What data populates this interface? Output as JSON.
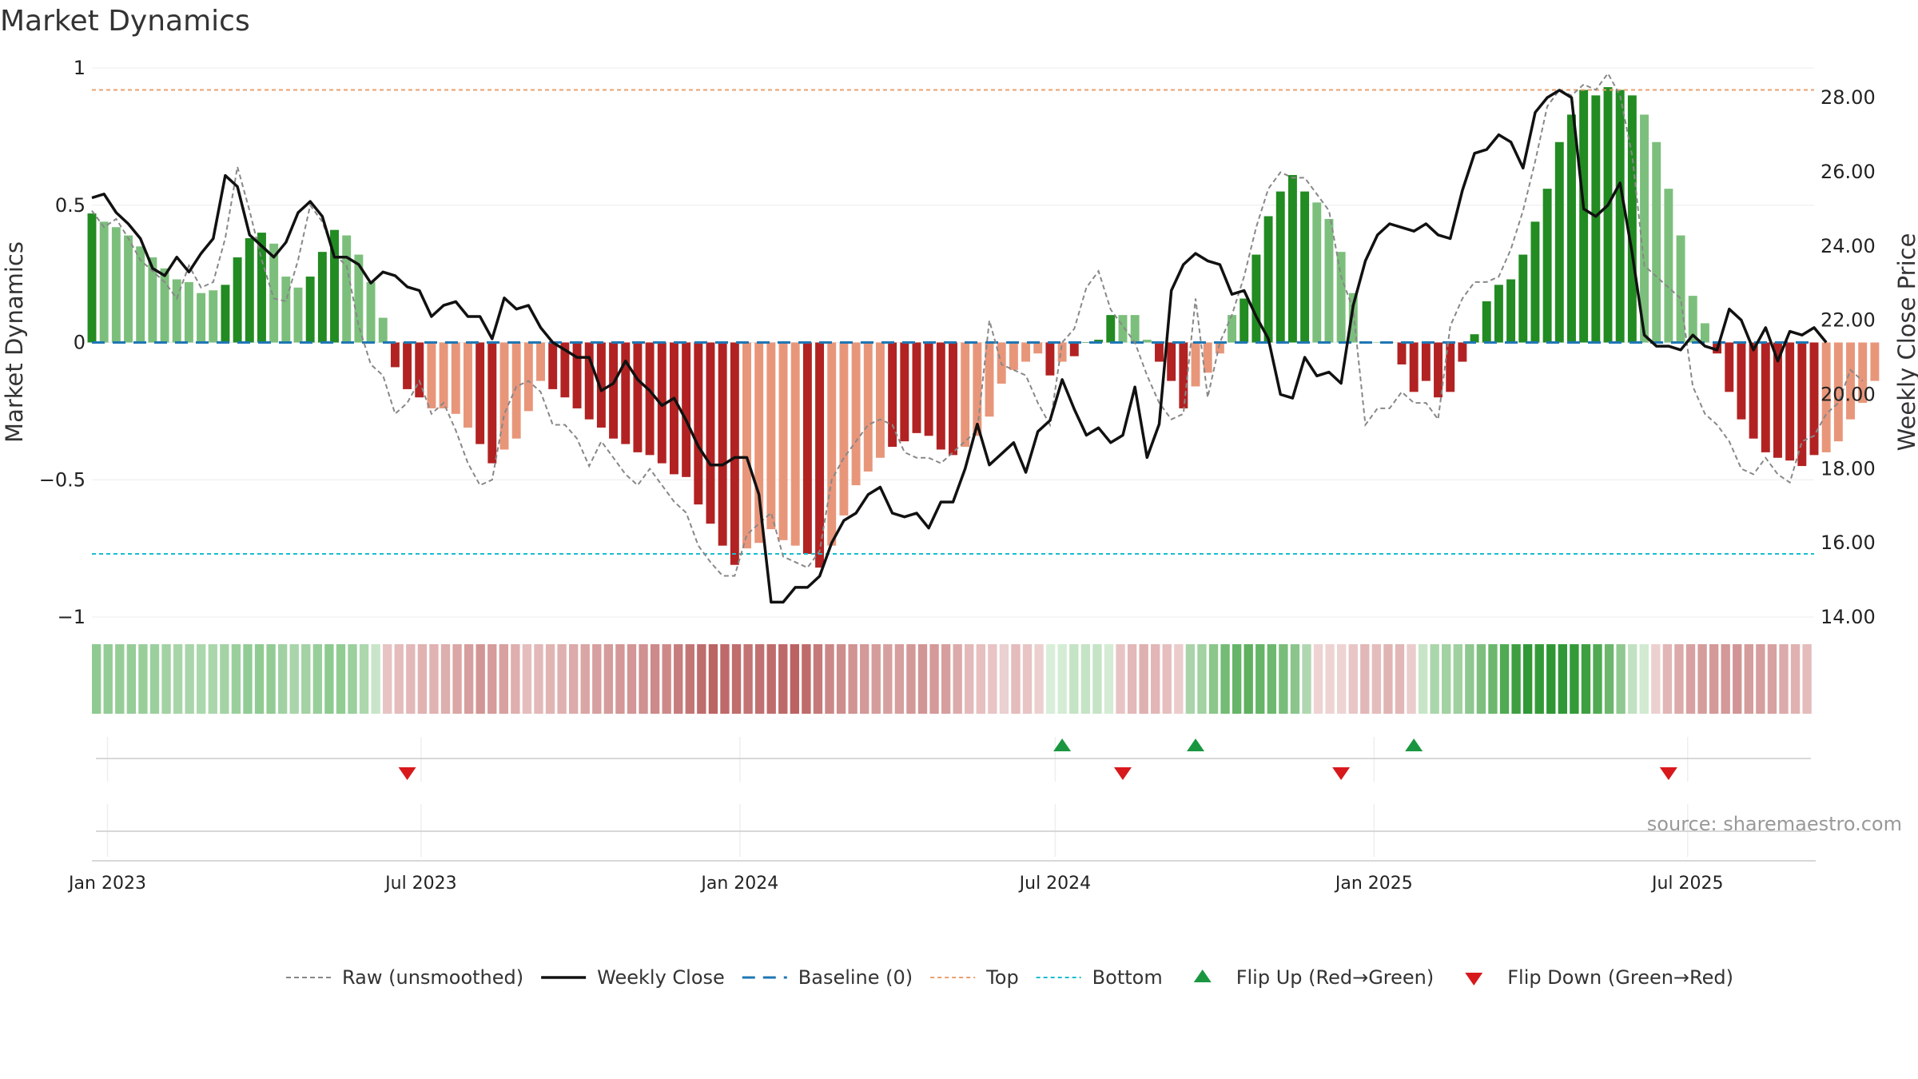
{
  "chart_data": {
    "type": "bar",
    "title": "Market Dynamics",
    "ylabel": "Market Dynamics",
    "y2label": "Weekly Close Price",
    "ylim": [
      -1,
      1
    ],
    "y2lim": [
      14,
      28.8
    ],
    "y_ticks": [
      1,
      0.5,
      0,
      -0.5,
      -1
    ],
    "y_tick_labels": [
      "1",
      "0.5",
      "0",
      "−0.5",
      "−1"
    ],
    "y2_ticks": [
      28,
      26,
      24,
      22,
      20,
      18,
      16,
      14
    ],
    "y2_tick_labels": [
      "28.00",
      "26.00",
      "24.00",
      "22.00",
      "20.00",
      "18.00",
      "16.00",
      "14.00"
    ],
    "x_start": "2022-12-23",
    "x_end": "2025-09-12",
    "x_ticks": [
      "2023-01-01",
      "2023-07-01",
      "2024-01-01",
      "2024-07-01",
      "2025-01-01",
      "2025-07-01"
    ],
    "x_tick_labels": [
      "Jan 2023",
      "Jul 2023",
      "Jan 2024",
      "Jul 2024",
      "Jan 2025",
      "Jul 2025"
    ],
    "first_week": "2022-12-23",
    "top_line": 0.92,
    "bottom_line": -0.77,
    "baseline": 0,
    "colors": {
      "strong_green": "#228B22",
      "light_green": "#7CBF7C",
      "strong_red": "#B22222",
      "light_red": "#E8967A",
      "weekly_close": "#111111",
      "raw": "#888888",
      "baseline": "#1f77b4",
      "top": "#E8A070",
      "bottom": "#17BECF",
      "flip_up": "#1a9641",
      "flip_down": "#d7191c"
    },
    "dynamics": [
      0.47,
      0.44,
      0.42,
      0.39,
      0.35,
      0.31,
      0.27,
      0.23,
      0.22,
      0.18,
      0.19,
      0.21,
      0.31,
      0.38,
      0.4,
      0.36,
      0.24,
      0.2,
      0.24,
      0.33,
      0.41,
      0.39,
      0.32,
      0.22,
      0.09,
      -0.09,
      -0.17,
      -0.2,
      -0.24,
      -0.24,
      -0.26,
      -0.31,
      -0.37,
      -0.44,
      -0.39,
      -0.35,
      -0.25,
      -0.14,
      -0.17,
      -0.2,
      -0.24,
      -0.28,
      -0.31,
      -0.35,
      -0.37,
      -0.4,
      -0.41,
      -0.44,
      -0.48,
      -0.49,
      -0.59,
      -0.66,
      -0.74,
      -0.81,
      -0.75,
      -0.73,
      -0.68,
      -0.72,
      -0.74,
      -0.77,
      -0.82,
      -0.74,
      -0.63,
      -0.52,
      -0.47,
      -0.42,
      -0.38,
      -0.36,
      -0.33,
      -0.34,
      -0.39,
      -0.41,
      -0.38,
      -0.34,
      -0.27,
      -0.15,
      -0.1,
      -0.07,
      -0.04,
      -0.12,
      -0.07,
      -0.05,
      0.0,
      0.01,
      0.1,
      0.1,
      0.1,
      0.01,
      -0.07,
      -0.14,
      -0.24,
      -0.16,
      -0.11,
      -0.04,
      0.1,
      0.16,
      0.32,
      0.46,
      0.55,
      0.61,
      0.55,
      0.51,
      0.45,
      0.33,
      0.18,
      0.0,
      0.0,
      0.0,
      -0.08,
      -0.18,
      -0.14,
      -0.2,
      -0.18,
      -0.07,
      0.03,
      0.15,
      0.21,
      0.23,
      0.32,
      0.44,
      0.56,
      0.73,
      0.83,
      0.92,
      0.9,
      0.93,
      0.92,
      0.9,
      0.83,
      0.73,
      0.56,
      0.39,
      0.17,
      0.07,
      -0.04,
      -0.18,
      -0.28,
      -0.35,
      -0.4,
      -0.42,
      -0.43,
      -0.45,
      -0.41,
      -0.4,
      -0.36,
      -0.28,
      -0.22,
      -0.14
    ],
    "strong_weeks": [
      0,
      11,
      12,
      13,
      14,
      18,
      19,
      20,
      25,
      26,
      27,
      32,
      33,
      38,
      39,
      40,
      41,
      42,
      43,
      44,
      45,
      46,
      47,
      48,
      49,
      50,
      51,
      52,
      53,
      59,
      60,
      66,
      67,
      68,
      69,
      70,
      71,
      79,
      81,
      82,
      83,
      84,
      88,
      89,
      90,
      95,
      96,
      97,
      98,
      99,
      100,
      108,
      109,
      110,
      111,
      112,
      113,
      114,
      115,
      116,
      117,
      118,
      119,
      120,
      121,
      122,
      123,
      124,
      125,
      126,
      127,
      134,
      135,
      136,
      137,
      138,
      139,
      140,
      141,
      142
    ],
    "weekly_close": [
      25.3,
      25.4,
      24.9,
      24.6,
      24.2,
      23.4,
      23.2,
      23.7,
      23.3,
      23.8,
      24.2,
      25.9,
      25.6,
      24.3,
      24.0,
      23.7,
      24.1,
      24.9,
      25.2,
      24.8,
      23.7,
      23.7,
      23.5,
      23.0,
      23.3,
      23.2,
      22.9,
      22.8,
      22.1,
      22.4,
      22.5,
      22.1,
      22.1,
      21.5,
      22.6,
      22.3,
      22.4,
      21.8,
      21.4,
      21.2,
      21.0,
      21.0,
      20.1,
      20.3,
      20.9,
      20.4,
      20.1,
      19.7,
      19.9,
      19.3,
      18.6,
      18.1,
      18.1,
      18.3,
      18.3,
      17.3,
      14.4,
      14.4,
      14.8,
      14.8,
      15.1,
      16.0,
      16.6,
      16.8,
      17.3,
      17.5,
      16.8,
      16.7,
      16.8,
      16.4,
      17.1,
      17.1,
      18.0,
      19.2,
      18.1,
      18.4,
      18.7,
      17.9,
      19.0,
      19.3,
      20.4,
      19.6,
      18.9,
      19.1,
      18.7,
      18.9,
      20.2,
      18.3,
      19.2,
      22.8,
      23.5,
      23.8,
      23.6,
      23.5,
      22.7,
      22.8,
      22.1,
      21.5,
      20.0,
      19.9,
      21.0,
      20.5,
      20.6,
      20.3,
      22.4,
      23.6,
      24.3,
      24.6,
      24.5,
      24.4,
      24.6,
      24.3,
      24.2,
      25.5,
      26.5,
      26.6,
      27.0,
      26.8,
      26.1,
      27.6,
      28.0,
      28.2,
      28.0,
      25.0,
      24.8,
      25.1,
      25.7,
      23.8,
      21.6,
      21.3,
      21.3,
      21.2,
      21.6,
      21.3,
      21.2,
      22.3,
      22.0,
      21.2,
      21.8,
      20.9,
      21.7,
      21.6,
      21.8,
      21.4
    ],
    "raw": [
      0.48,
      0.42,
      0.45,
      0.38,
      0.3,
      0.26,
      0.22,
      0.16,
      0.28,
      0.2,
      0.22,
      0.38,
      0.64,
      0.48,
      0.3,
      0.16,
      0.15,
      0.3,
      0.5,
      0.44,
      0.32,
      0.28,
      0.06,
      -0.08,
      -0.12,
      -0.26,
      -0.22,
      -0.14,
      -0.26,
      -0.22,
      -0.32,
      -0.44,
      -0.52,
      -0.5,
      -0.26,
      -0.16,
      -0.14,
      -0.18,
      -0.3,
      -0.3,
      -0.35,
      -0.45,
      -0.36,
      -0.42,
      -0.48,
      -0.52,
      -0.46,
      -0.52,
      -0.58,
      -0.62,
      -0.74,
      -0.8,
      -0.85,
      -0.85,
      -0.7,
      -0.66,
      -0.62,
      -0.78,
      -0.8,
      -0.82,
      -0.76,
      -0.5,
      -0.42,
      -0.36,
      -0.3,
      -0.28,
      -0.3,
      -0.4,
      -0.42,
      -0.42,
      -0.44,
      -0.4,
      -0.36,
      -0.32,
      0.08,
      -0.08,
      -0.1,
      -0.12,
      -0.22,
      -0.3,
      0.0,
      0.05,
      0.2,
      0.26,
      0.12,
      0.06,
      0.0,
      -0.12,
      -0.22,
      -0.28,
      -0.26,
      0.16,
      -0.2,
      0.0,
      0.1,
      0.24,
      0.42,
      0.56,
      0.62,
      0.6,
      0.6,
      0.54,
      0.48,
      0.24,
      0.12,
      -0.3,
      -0.24,
      -0.24,
      -0.18,
      -0.22,
      -0.22,
      -0.28,
      0.06,
      0.16,
      0.22,
      0.22,
      0.24,
      0.34,
      0.48,
      0.66,
      0.86,
      0.92,
      0.9,
      0.94,
      0.92,
      0.98,
      0.9,
      0.68,
      0.28,
      0.24,
      0.2,
      0.16,
      -0.16,
      -0.26,
      -0.3,
      -0.36,
      -0.46,
      -0.48,
      -0.42,
      -0.48,
      -0.51,
      -0.36,
      -0.34,
      -0.26,
      -0.22,
      -0.1,
      -0.14
    ],
    "flips_up": [
      80,
      91,
      109
    ],
    "flips_down": [
      26,
      85,
      103,
      130
    ],
    "strip_colors": [
      "#8fca92",
      "#94cc96",
      "#95cd97",
      "#96cd98",
      "#99ce9b",
      "#9ccf9e",
      "#a2d2a3",
      "#a7d5a8",
      "#a8d5a9",
      "#abd7ac",
      "#abd6ac",
      "#a3d3a4",
      "#9acf9c",
      "#92cc95",
      "#8fcb92",
      "#92cc94",
      "#a1d1a2",
      "#a8d5a9",
      "#a3d2a4",
      "#98ce9a",
      "#8dca90",
      "#91cc93",
      "#9bcf9d",
      "#acd7ad",
      "#c9e5c9",
      "#e8c3c3",
      "#e4bcbc",
      "#e2b8b8",
      "#e0b2b2",
      "#e0b2b2",
      "#ddaeae",
      "#daa6a6",
      "#d69e9e",
      "#d29595",
      "#d69b9b",
      "#d8a0a0",
      "#dfaeae",
      "#e5bdbd",
      "#e3b8b8",
      "#e1b4b4",
      "#dfb0b0",
      "#dcaaaa",
      "#daa5a5",
      "#d79f9f",
      "#d59c9c",
      "#d39797",
      "#d39595",
      "#d09191",
      "#cd8a8a",
      "#cd8989",
      "#c77d7d",
      "#c37575",
      "#bf6c6c",
      "#bb6464",
      "#be6a6a",
      "#c06d6d",
      "#c37373",
      "#c07070",
      "#bf6c6c",
      "#bd6969",
      "#bb6363",
      "#bf6b6b",
      "#c57979",
      "#cb8787",
      "#ce8d8d",
      "#d19393",
      "#d49999",
      "#d59c9c",
      "#d7a0a0",
      "#d69e9e",
      "#d39898",
      "#d29595",
      "#d49999",
      "#d79e9e",
      "#dcaaaa",
      "#e3b9b9",
      "#e6bfbf",
      "#e8c4c4",
      "#ead0d0",
      "#e4bcbc",
      "#e8c4c4",
      "#ecd0d0",
      "#d9eed9",
      "#d4ecd4",
      "#c5e3c5",
      "#c5e3c5",
      "#c5e3c5",
      "#d4ecd4",
      "#e7c4c4",
      "#e3b8b8",
      "#dfb0b0",
      "#e2b6b6",
      "#e6bebe",
      "#ebcccc",
      "#a9d4a9",
      "#a2d1a2",
      "#8bc68b",
      "#74bb75",
      "#66b468",
      "#5fb061",
      "#66b468",
      "#6db86f",
      "#79bd7a",
      "#8bc58c",
      "#b1d7b1",
      "#eed3d3",
      "#eed3d3",
      "#eed3d3",
      "#e8c6c6",
      "#e2b7b7",
      "#e5bcbc",
      "#e1b4b4",
      "#e2b7b7",
      "#ebcccc",
      "#c7e4c7",
      "#abd6ab",
      "#a2d1a2",
      "#9fd0a0",
      "#8ec78f",
      "#7ebf7f",
      "#6cb76d",
      "#50aa53",
      "#3e9f41",
      "#309837",
      "#349a38",
      "#2e9734",
      "#309837",
      "#349a38",
      "#3e9f41",
      "#50aa53",
      "#6cb76d",
      "#8fc890",
      "#c2e1c2",
      "#d1ead1",
      "#ecd0d0",
      "#e2b6b6",
      "#dcaaaa",
      "#d8a1a1",
      "#d59c9c",
      "#d49999",
      "#d39898",
      "#d29595",
      "#d59c9c",
      "#d69e9e",
      "#d8a1a1",
      "#dcaaaa",
      "#e0b1b1",
      "#e4bcbc"
    ],
    "legend": [
      {
        "key": "raw",
        "label": "Raw (unsmoothed)"
      },
      {
        "key": "weekly_close",
        "label": "Weekly Close"
      },
      {
        "key": "baseline",
        "label": "Baseline (0)"
      },
      {
        "key": "top",
        "label": "Top"
      },
      {
        "key": "bottom",
        "label": "Bottom"
      },
      {
        "key": "flip_up",
        "label": "Flip Up (Red→Green)"
      },
      {
        "key": "flip_down",
        "label": "Flip Down (Green→Red)"
      }
    ],
    "source": "source: sharemaestro.com"
  }
}
